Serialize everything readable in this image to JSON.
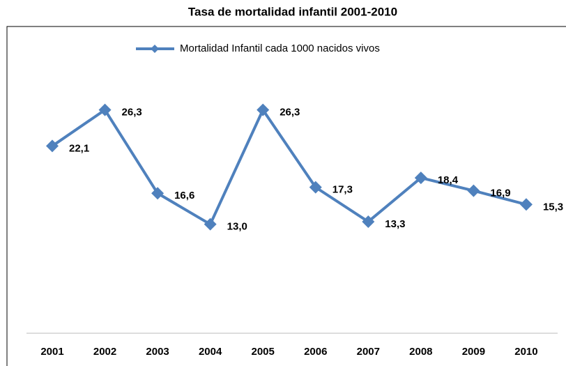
{
  "chart_data": {
    "type": "line",
    "title": "Tasa de mortalidad infantil 2001-2010",
    "categories": [
      "2001",
      "2002",
      "2003",
      "2004",
      "2005",
      "2006",
      "2007",
      "2008",
      "2009",
      "2010"
    ],
    "series": [
      {
        "name": "Mortalidad Infantil cada 1000 nacidos vivos",
        "color": "#4f81bd",
        "values": [
          22.1,
          26.3,
          16.6,
          13.0,
          26.3,
          17.3,
          13.3,
          18.4,
          16.9,
          15.3
        ],
        "value_labels": [
          "22,1",
          "26,3",
          "16,6",
          "13,0",
          "26,3",
          "17,3",
          "13,3",
          "18,4",
          "16,9",
          "15,3"
        ]
      }
    ],
    "ylim": [
      0,
      36
    ],
    "legend": "top"
  }
}
